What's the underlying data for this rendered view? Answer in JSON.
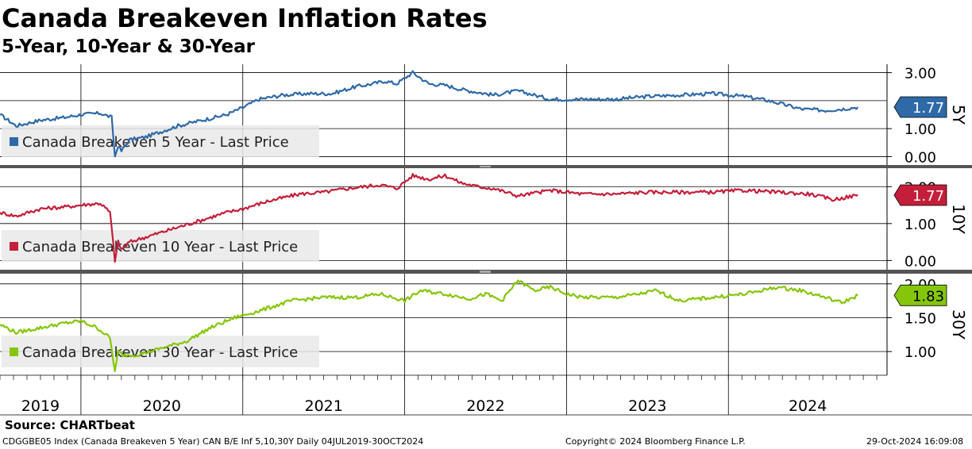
{
  "header": {
    "title": "Canada Breakeven Inflation Rates",
    "subtitle": "5-Year, 10-Year & 30-Year"
  },
  "footer": {
    "source": "Source: CHARTbeat",
    "ticker_info": "CDGGBE05 Index (Canada Breakeven 5 Year) CAN B/E Inf 5,10,30Y  Daily 04JUL2019-30OCT2024",
    "copyright": "Copyright© 2024 Bloomberg Finance L.P.",
    "timestamp": "29-Oct-2024 16:09:08"
  },
  "chart_data": [
    {
      "type": "line",
      "panel_label": "5Y",
      "legend": "Canada Breakeven 5 Year - Last Price",
      "ytick_labels": [
        "3.00",
        "1.00",
        "0.00"
      ],
      "ytick_values": [
        3.0,
        1.0,
        0.0
      ],
      "gridline_values": [
        3.0,
        2.0,
        1.0,
        0.0
      ],
      "ylim": [
        -0.3,
        3.3
      ],
      "last_value": 1.77,
      "last_label": "1.77",
      "color": "#2e6aa8",
      "label_bg": "#2e6aa8",
      "label_fg": "#ffffff",
      "x": [
        2019.5,
        2019.6,
        2019.75,
        2019.9,
        2020.0,
        2020.12,
        2020.19,
        2020.21,
        2020.23,
        2020.25,
        2020.3,
        2020.4,
        2020.5,
        2020.6,
        2020.75,
        2020.9,
        2021.0,
        2021.1,
        2021.25,
        2021.4,
        2021.55,
        2021.7,
        2021.8,
        2021.88,
        2021.95,
        2022.05,
        2022.15,
        2022.25,
        2022.35,
        2022.45,
        2022.55,
        2022.7,
        2022.9,
        2023.1,
        2023.3,
        2023.5,
        2023.7,
        2023.9,
        2024.1,
        2024.25,
        2024.45,
        2024.6,
        2024.7,
        2024.8
      ],
      "y": [
        1.5,
        1.1,
        1.3,
        1.4,
        1.5,
        1.55,
        1.4,
        0.0,
        0.4,
        0.2,
        0.6,
        0.7,
        0.9,
        1.1,
        1.3,
        1.5,
        1.75,
        2.05,
        2.2,
        2.25,
        2.25,
        2.5,
        2.6,
        2.7,
        2.6,
        3.0,
        2.6,
        2.55,
        2.4,
        2.3,
        2.2,
        2.35,
        2.05,
        2.05,
        2.05,
        2.15,
        2.2,
        2.25,
        2.15,
        2.0,
        1.7,
        1.65,
        1.7,
        1.77
      ]
    },
    {
      "type": "line",
      "panel_label": "10Y",
      "legend": "Canada Breakeven 10 Year - Last Price",
      "ytick_labels": [
        "2.00",
        "1.00",
        "0.00"
      ],
      "ytick_values": [
        2.0,
        1.0,
        0.0
      ],
      "gridline_values": [
        2.0,
        1.0,
        0.0
      ],
      "ylim": [
        -0.25,
        2.5
      ],
      "last_value": 1.77,
      "last_label": "1.77",
      "color": "#c41e3a",
      "label_bg": "#c41e3a",
      "label_fg": "#ffffff",
      "x": [
        2019.5,
        2019.6,
        2019.75,
        2019.9,
        2020.0,
        2020.12,
        2020.18,
        2020.21,
        2020.23,
        2020.25,
        2020.3,
        2020.45,
        2020.6,
        2020.75,
        2020.9,
        2021.0,
        2021.15,
        2021.35,
        2021.5,
        2021.65,
        2021.75,
        2021.85,
        2021.95,
        2022.05,
        2022.15,
        2022.25,
        2022.35,
        2022.45,
        2022.55,
        2022.7,
        2022.9,
        2023.1,
        2023.3,
        2023.5,
        2023.7,
        2023.9,
        2024.1,
        2024.3,
        2024.5,
        2024.65,
        2024.8
      ],
      "y": [
        1.3,
        1.2,
        1.4,
        1.45,
        1.5,
        1.55,
        1.3,
        0.0,
        0.5,
        0.3,
        0.5,
        0.7,
        0.9,
        1.1,
        1.3,
        1.4,
        1.6,
        1.8,
        1.85,
        1.95,
        2.0,
        2.05,
        1.95,
        2.3,
        2.2,
        2.3,
        2.1,
        2.0,
        1.95,
        1.75,
        1.9,
        1.8,
        1.8,
        1.85,
        1.85,
        1.85,
        1.9,
        1.85,
        1.8,
        1.65,
        1.77
      ]
    },
    {
      "type": "line",
      "panel_label": "30Y",
      "legend": "Canada Breakeven 30 Year - Last Price",
      "ytick_labels": [
        "2.00",
        "1.50",
        "1.00"
      ],
      "ytick_values": [
        2.0,
        1.5,
        1.0
      ],
      "gridline_values": [
        2.0,
        1.5,
        1.0
      ],
      "ylim": [
        0.65,
        2.15
      ],
      "last_value": 1.83,
      "last_label": "1.83",
      "color": "#86c60a",
      "label_bg": "#86c60a",
      "label_fg": "#000000",
      "x": [
        2019.5,
        2019.6,
        2019.75,
        2019.9,
        2020.0,
        2020.1,
        2020.18,
        2020.21,
        2020.23,
        2020.26,
        2020.35,
        2020.5,
        2020.65,
        2020.8,
        2020.95,
        2021.1,
        2021.3,
        2021.5,
        2021.7,
        2021.85,
        2022.0,
        2022.1,
        2022.25,
        2022.4,
        2022.5,
        2022.6,
        2022.7,
        2022.8,
        2022.9,
        2023.0,
        2023.1,
        2023.3,
        2023.45,
        2023.55,
        2023.7,
        2023.9,
        2024.1,
        2024.3,
        2024.45,
        2024.6,
        2024.7,
        2024.8
      ],
      "y": [
        1.4,
        1.28,
        1.35,
        1.42,
        1.45,
        1.35,
        1.2,
        0.7,
        1.0,
        0.95,
        0.95,
        1.05,
        1.15,
        1.35,
        1.5,
        1.6,
        1.75,
        1.8,
        1.8,
        1.85,
        1.75,
        1.9,
        1.85,
        1.78,
        1.85,
        1.75,
        2.05,
        1.9,
        1.95,
        1.85,
        1.8,
        1.8,
        1.85,
        1.9,
        1.75,
        1.8,
        1.85,
        1.95,
        1.9,
        1.8,
        1.72,
        1.83
      ]
    }
  ],
  "x_axis": {
    "years": [
      "2019",
      "2020",
      "2021",
      "2022",
      "2023",
      "2024"
    ],
    "xlim": [
      2019.5,
      2024.98
    ]
  }
}
